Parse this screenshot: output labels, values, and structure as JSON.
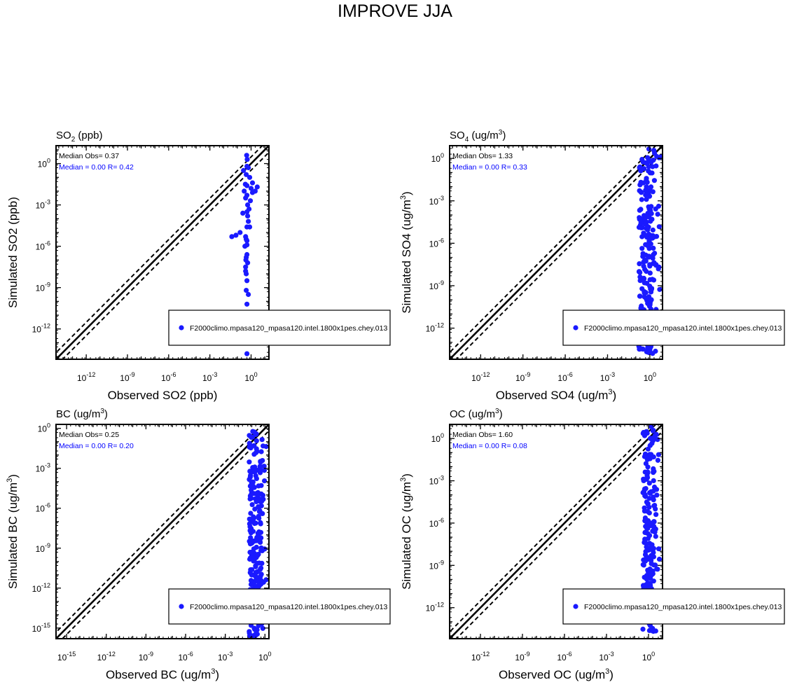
{
  "page_title": "IMPROVE JJA",
  "legend_label": "F2000climo.mpasa120_mpasa120.intel.1800x1pes.chey.013",
  "colors": {
    "points": "#1a1aff",
    "stats_blue": "#0000ff",
    "axis": "#000000"
  },
  "chart_data": [
    {
      "type": "scatter",
      "title": "SO2 (ppb)",
      "title_main": "SO",
      "title_sub": "2",
      "title_rest": " (ppb)",
      "xlabel": "Observed SO2 (ppb)",
      "ylabel": "Simulated SO2 (ppb)",
      "scale": "log10",
      "xlim_exp": [
        -14.2,
        1.3
      ],
      "ylim_exp": [
        -14.2,
        1.3
      ],
      "xticks": [
        -12,
        -9,
        -6,
        -3,
        0
      ],
      "yticks": [
        -12,
        -9,
        -6,
        -3,
        0
      ],
      "stat_obs": "Median Obs= 0.37",
      "stat_model": "Median = 0.00 R= 0.42",
      "reference_lines": [
        "1:1",
        "2:1",
        "1:2"
      ],
      "legend_position": "lower-right",
      "series": [
        {
          "name": "F2000climo.mpasa120_mpasa120.intel.1800x1pes.chey.013",
          "log_x": [
            -0.32,
            -0.28,
            -0.55,
            -0.3,
            -0.2,
            -0.42,
            -0.35,
            -0.1,
            -0.5,
            -0.3,
            -0.05,
            -0.4,
            -0.25,
            -0.15,
            -0.6,
            -0.8,
            -0.3,
            -0.2,
            -0.35,
            -0.45,
            -0.3,
            -0.25,
            -0.4,
            -0.3,
            -0.35,
            -0.3,
            -0.4,
            -0.28,
            -0.38,
            -0.3,
            -0.35,
            -0.4,
            0.45,
            0.3,
            0.1,
            -0.25,
            -0.1,
            -1.1,
            -0.3,
            -0.4,
            0.0,
            0.1,
            -0.3,
            -0.35,
            -0.2,
            -0.3,
            -0.3,
            -1.4
          ],
          "log_y": [
            0.6,
            0.3,
            -0.5,
            -0.2,
            -0.3,
            -1.5,
            -0.8,
            -1.0,
            -2.0,
            -2.3,
            -2.7,
            -2.5,
            -3.0,
            -3.3,
            -3.6,
            -5.0,
            -3.5,
            -4.2,
            -5.5,
            -6.0,
            -6.6,
            -7.2,
            -7.8,
            -8.5,
            -9.2,
            -10.2,
            -11.2,
            -10.8,
            -7.0,
            -4.6,
            -6.8,
            -5.3,
            -1.7,
            -2.0,
            -1.4,
            -3.8,
            -4.6,
            -5.2,
            -5.9,
            -7.5,
            -1.8,
            -2.1,
            -1.6,
            -8.0,
            -9.5,
            -5.6,
            -13.8,
            -5.3
          ]
        }
      ]
    },
    {
      "type": "scatter",
      "title": "SO4 (ug/m3)",
      "title_main": "SO",
      "title_sub": "4",
      "title_rest": " (ug/m",
      "title_sup": "3",
      "title_end": ")",
      "xlabel": "Observed SO4 (ug/m3)",
      "xlabel_main": "Observed SO4 (ug/m",
      "xlabel_sup": "3",
      "xlabel_end": ")",
      "ylabel": "Simulated SO4 (ug/m3)",
      "ylabel_main": "Simulated SO4 (ug/m",
      "ylabel_sup": "3",
      "ylabel_end": ")",
      "scale": "log10",
      "xlim_exp": [
        -14.2,
        0.9
      ],
      "ylim_exp": [
        -14.2,
        0.9
      ],
      "xticks": [
        -12,
        -9,
        -6,
        -3,
        0
      ],
      "yticks": [
        -12,
        -9,
        -6,
        -3,
        0
      ],
      "stat_obs": "Median Obs= 1.33",
      "stat_model": "Median = 0.00 R= 0.33",
      "reference_lines": [
        "1:1",
        "2:1",
        "1:2"
      ],
      "legend_position": "lower-right",
      "band": {
        "x_min": -0.8,
        "x_max": 0.8,
        "y_min": -13.8,
        "y_max": 0.7,
        "count": 240
      }
    },
    {
      "type": "scatter",
      "title": "BC (ug/m3)",
      "title_main": "BC (ug/m",
      "title_sup": "3",
      "title_end": ")",
      "xlabel": "Observed BC (ug/m3)",
      "xlabel_main": "Observed BC (ug/m",
      "xlabel_sup": "3",
      "xlabel_end": ")",
      "ylabel": "Simulated BC (ug/m3)",
      "ylabel_main": "Simulated BC (ug/m",
      "ylabel_sup": "3",
      "ylabel_end": ")",
      "scale": "log10",
      "xlim_exp": [
        -15.8,
        0.3
      ],
      "ylim_exp": [
        -15.8,
        0.3
      ],
      "xticks": [
        -15,
        -12,
        -9,
        -6,
        -3,
        0
      ],
      "yticks": [
        -15,
        -12,
        -9,
        -6,
        -3,
        0
      ],
      "stat_obs": "Median Obs= 0.25",
      "stat_model": "Median = 0.00 R= 0.20",
      "reference_lines": [
        "1:1",
        "2:1",
        "1:2"
      ],
      "legend_position": "lower-right",
      "band": {
        "x_min": -1.2,
        "x_max": 0.1,
        "y_min": -15.6,
        "y_max": -0.2,
        "count": 230
      }
    },
    {
      "type": "scatter",
      "title": "OC (ug/m3)",
      "title_main": "OC (ug/m",
      "title_sup": "3",
      "title_end": ")",
      "xlabel": "Observed OC (ug/m3)",
      "xlabel_main": "Observed OC (ug/m",
      "xlabel_sup": "3",
      "xlabel_end": ")",
      "ylabel": "Simulated OC (ug/m3)",
      "ylabel_main": "Simulated OC (ug/m",
      "ylabel_sup": "3",
      "ylabel_end": ")",
      "scale": "log10",
      "xlim_exp": [
        -14.2,
        1.0
      ],
      "ylim_exp": [
        -14.2,
        1.0
      ],
      "xticks": [
        -12,
        -9,
        -6,
        -3,
        0
      ],
      "yticks": [
        -12,
        -9,
        -6,
        -3,
        0
      ],
      "stat_obs": "Median Obs= 1.60",
      "stat_model": "Median = 0.00 R= 0.08",
      "reference_lines": [
        "1:1",
        "2:1",
        "1:2"
      ],
      "legend_position": "lower-right",
      "band": {
        "x_min": -0.4,
        "x_max": 0.9,
        "y_min": -13.8,
        "y_max": 0.9,
        "count": 200
      }
    }
  ]
}
